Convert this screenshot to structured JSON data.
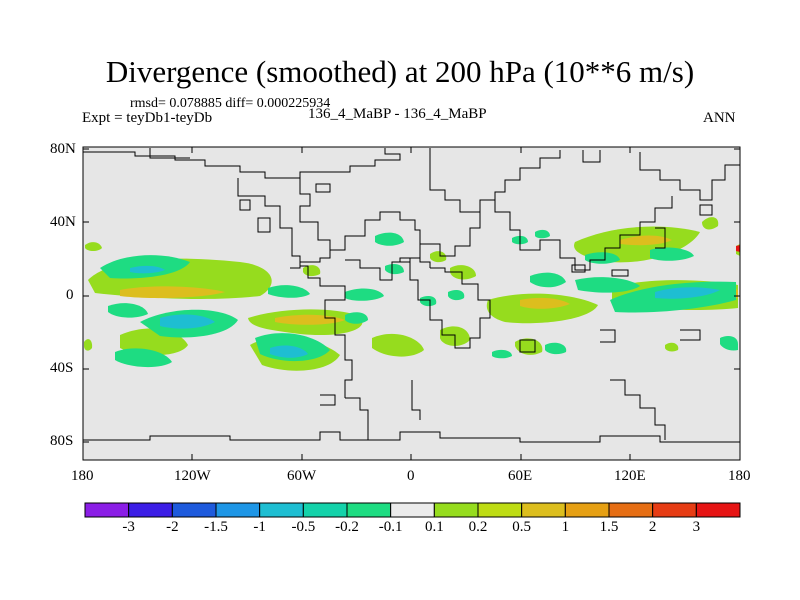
{
  "title": "Divergence (smoothed) at 200 hPa (10**6 m/s)",
  "stats": "rmsd= 0.078885  diff= 0.000225934",
  "expt": "Expt = teyDb1-teyDb",
  "case": "136_4_MaBP - 136_4_MaBP",
  "season": "ANN",
  "lat_ticks": [
    "80N",
    "40N",
    "0",
    "40S",
    "80S"
  ],
  "lon_ticks": [
    "180",
    "120W",
    "60W",
    "0",
    "60E",
    "120E",
    "180"
  ],
  "colorbar": {
    "labels": [
      "-3",
      "-2",
      "-1.5",
      "-1",
      "-0.5",
      "-0.2",
      "-0.1",
      "0.1",
      "0.2",
      "0.5",
      "1",
      "1.5",
      "2",
      "3"
    ],
    "colors": [
      "#8b1ee6",
      "#3c1ee6",
      "#1e5adc",
      "#1e96e6",
      "#1ebed2",
      "#14d2aa",
      "#1edc82",
      "#ebebeb",
      "#96dc1e",
      "#bedc14",
      "#dcbe1e",
      "#e6a014",
      "#e66e14",
      "#e63c14",
      "#e61414"
    ]
  },
  "map": {
    "background": "#e6e6e6",
    "lat_range": [
      -90,
      90
    ],
    "lon_range": [
      -180,
      180
    ]
  }
}
